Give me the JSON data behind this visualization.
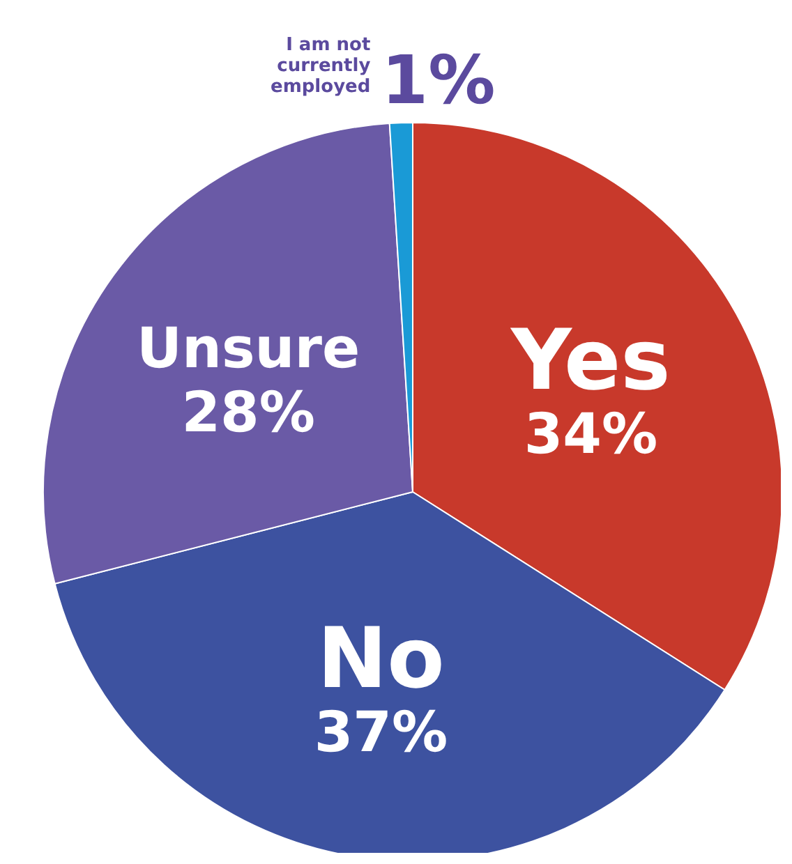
{
  "chart_data": {
    "type": "pie",
    "categories": [
      "Yes",
      "No",
      "Unsure",
      "I am not currently employed"
    ],
    "values": [
      34,
      37,
      28,
      1
    ],
    "colors": [
      "#c8392b",
      "#3d52a0",
      "#6a5aa6",
      "#1a9ad6"
    ],
    "value_labels": [
      "34%",
      "37%",
      "28%",
      "1%"
    ]
  }
}
